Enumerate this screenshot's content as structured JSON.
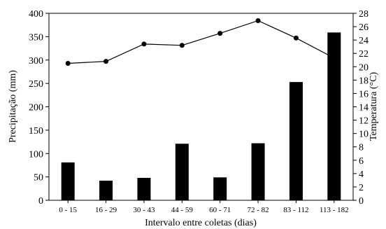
{
  "chart_data": {
    "type": "bar",
    "categories": [
      "0 - 15",
      "16 - 29",
      "30 - 43",
      "44 - 59",
      "60 - 71",
      "72 - 82",
      "83 - 112",
      "113 - 182"
    ],
    "xlabel": "Intervalo entre coletas (dias)",
    "ylabel": "Precipitação (mm)",
    "y2label": "Temperatura (°C)",
    "ylim": [
      0,
      400
    ],
    "y2lim": [
      0,
      28
    ],
    "y_ticks": [
      "0",
      "50",
      "100",
      "150",
      "200",
      "250",
      "300",
      "350",
      "400"
    ],
    "y2_ticks": [
      "0",
      "2",
      "4",
      "6",
      "8",
      "10",
      "12",
      "14",
      "16",
      "18",
      "20",
      "22",
      "24",
      "26",
      "28"
    ],
    "grid": false,
    "series": [
      {
        "type": "bar",
        "axis": "left",
        "values": [
          81,
          42,
          48,
          121,
          49,
          122,
          253,
          359
        ]
      },
      {
        "type": "line",
        "axis": "right",
        "marker": "circle",
        "values": [
          20.5,
          20.8,
          23.4,
          23.2,
          25.0,
          26.9,
          24.3,
          21.3
        ]
      }
    ],
    "colors": {
      "bars": "#000000",
      "line": "#000000"
    }
  }
}
